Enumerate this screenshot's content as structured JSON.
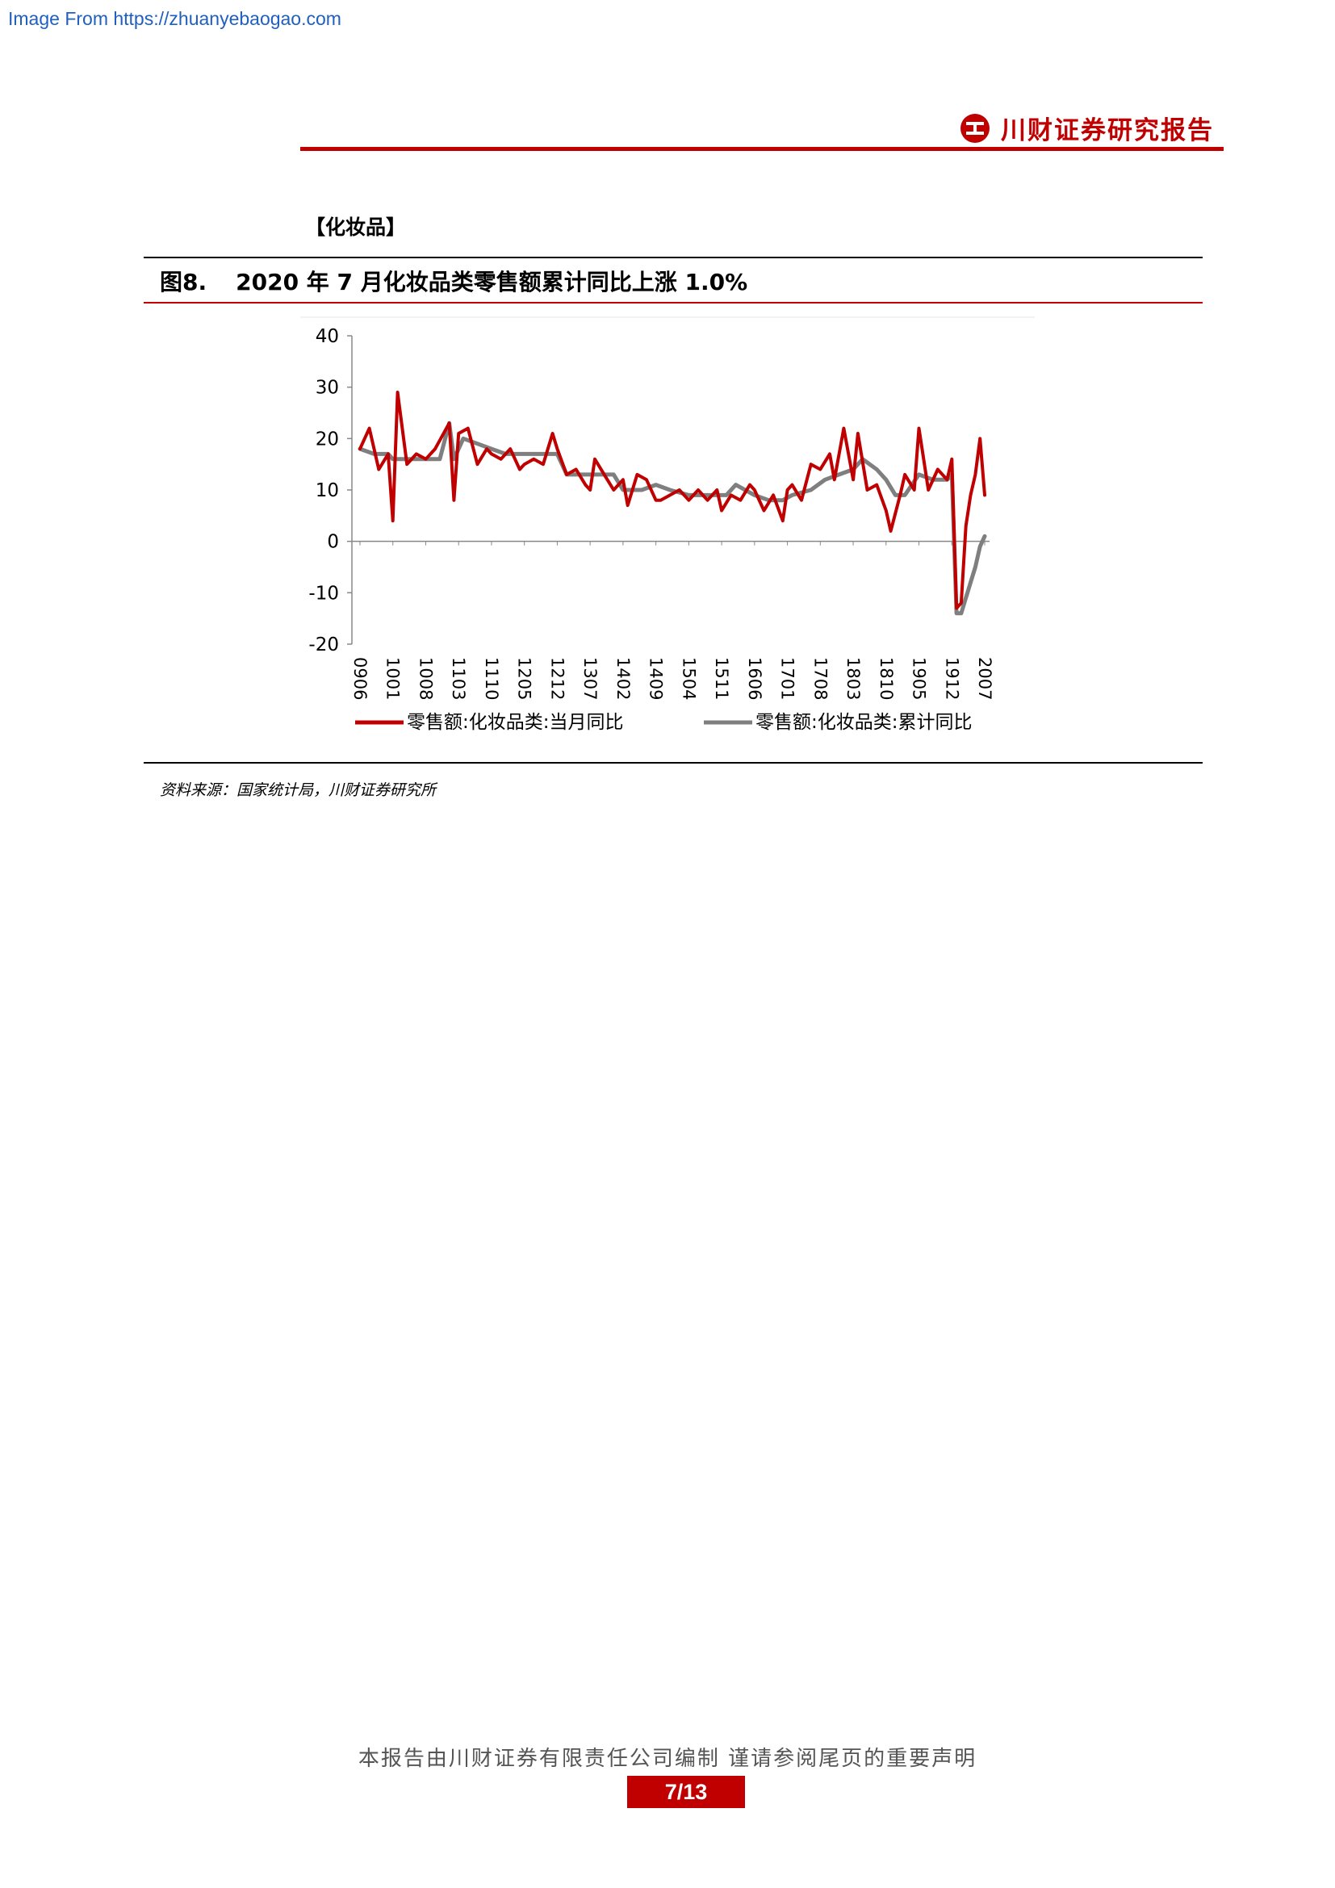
{
  "watermark": "Image From https://zhuanyebaogao.com",
  "header": {
    "brand": "川财证券研究报告"
  },
  "section": {
    "heading": "【化妆品】"
  },
  "figure": {
    "label": "图8.",
    "title": "2020 年 7 月化妆品类零售额累计同比上涨 1.0%",
    "source": "资料来源：国家统计局，川财证券研究所"
  },
  "chart_data": {
    "type": "line",
    "title": "",
    "xlabel": "",
    "ylabel": "",
    "ylim": [
      -20,
      40
    ],
    "yticks": [
      -20,
      -10,
      0,
      10,
      20,
      30,
      40
    ],
    "xtick_labels": [
      "0906",
      "1001",
      "1008",
      "1103",
      "1110",
      "1205",
      "1212",
      "1307",
      "1402",
      "1409",
      "1504",
      "1511",
      "1606",
      "1701",
      "1708",
      "1803",
      "1810",
      "1905",
      "1912",
      "2007"
    ],
    "legend_position": "bottom",
    "grid": false,
    "series": [
      {
        "name": "零售额:化妆品类:当月同比",
        "color": "#c00000",
        "points": [
          [
            "0906",
            18
          ],
          [
            "0908",
            22
          ],
          [
            "0910",
            14
          ],
          [
            "0912",
            17
          ],
          [
            "1001",
            4
          ],
          [
            "1002",
            29
          ],
          [
            "1004",
            15
          ],
          [
            "1006",
            17
          ],
          [
            "1008",
            16
          ],
          [
            "1010",
            18
          ],
          [
            "1101",
            23
          ],
          [
            "1102",
            8
          ],
          [
            "1103",
            21
          ],
          [
            "1105",
            22
          ],
          [
            "1107",
            15
          ],
          [
            "1109",
            18
          ],
          [
            "1110",
            17
          ],
          [
            "1112",
            16
          ],
          [
            "1202",
            18
          ],
          [
            "1204",
            14
          ],
          [
            "1205",
            15
          ],
          [
            "1207",
            16
          ],
          [
            "1209",
            15
          ],
          [
            "1211",
            21
          ],
          [
            "1212",
            18
          ],
          [
            "1302",
            13
          ],
          [
            "1304",
            14
          ],
          [
            "1306",
            11
          ],
          [
            "1307",
            10
          ],
          [
            "1308",
            16
          ],
          [
            "1310",
            13
          ],
          [
            "1312",
            10
          ],
          [
            "1402",
            12
          ],
          [
            "1403",
            7
          ],
          [
            "1405",
            13
          ],
          [
            "1407",
            12
          ],
          [
            "1409",
            8
          ],
          [
            "1410",
            8
          ],
          [
            "1412",
            9
          ],
          [
            "1502",
            10
          ],
          [
            "1504",
            8
          ],
          [
            "1506",
            10
          ],
          [
            "1508",
            8
          ],
          [
            "1510",
            10
          ],
          [
            "1511",
            6
          ],
          [
            "1601",
            9
          ],
          [
            "1603",
            8
          ],
          [
            "1605",
            11
          ],
          [
            "1606",
            10
          ],
          [
            "1608",
            6
          ],
          [
            "1610",
            9
          ],
          [
            "1612",
            4
          ],
          [
            "1701",
            10
          ],
          [
            "1702",
            11
          ],
          [
            "1704",
            8
          ],
          [
            "1706",
            15
          ],
          [
            "1708",
            14
          ],
          [
            "1710",
            17
          ],
          [
            "1711",
            12
          ],
          [
            "1801",
            22
          ],
          [
            "1803",
            12
          ],
          [
            "1804",
            21
          ],
          [
            "1806",
            10
          ],
          [
            "1808",
            11
          ],
          [
            "1810",
            6
          ],
          [
            "1811",
            2
          ],
          [
            "1901",
            9
          ],
          [
            "1902",
            13
          ],
          [
            "1904",
            10
          ],
          [
            "1905",
            22
          ],
          [
            "1907",
            10
          ],
          [
            "1909",
            14
          ],
          [
            "1911",
            12
          ],
          [
            "1912",
            16
          ],
          [
            "2001",
            -13
          ],
          [
            "2002",
            -12
          ],
          [
            "2003",
            3
          ],
          [
            "2004",
            9
          ],
          [
            "2005",
            13
          ],
          [
            "2006",
            20
          ],
          [
            "2007",
            9
          ]
        ]
      },
      {
        "name": "零售额:化妆品类:累计同比",
        "color": "#7f7f7f",
        "points": [
          [
            "0906",
            18
          ],
          [
            "0909",
            17
          ],
          [
            "0912",
            17
          ],
          [
            "1001",
            16
          ],
          [
            "1002",
            16
          ],
          [
            "1005",
            16
          ],
          [
            "1008",
            16
          ],
          [
            "1011",
            16
          ],
          [
            "1101",
            23
          ],
          [
            "1102",
            16
          ],
          [
            "1104",
            20
          ],
          [
            "1107",
            19
          ],
          [
            "1110",
            18
          ],
          [
            "1201",
            17
          ],
          [
            "1205",
            17
          ],
          [
            "1208",
            17
          ],
          [
            "1211",
            17
          ],
          [
            "1212",
            17
          ],
          [
            "1302",
            13
          ],
          [
            "1306",
            13
          ],
          [
            "1309",
            13
          ],
          [
            "1312",
            13
          ],
          [
            "1402",
            10
          ],
          [
            "1406",
            10
          ],
          [
            "1409",
            11
          ],
          [
            "1412",
            10
          ],
          [
            "1504",
            9
          ],
          [
            "1508",
            9
          ],
          [
            "1511",
            9
          ],
          [
            "1512",
            9
          ],
          [
            "1602",
            11
          ],
          [
            "1606",
            9
          ],
          [
            "1609",
            8
          ],
          [
            "1612",
            8
          ],
          [
            "1702",
            9
          ],
          [
            "1706",
            10
          ],
          [
            "1709",
            12
          ],
          [
            "1712",
            13
          ],
          [
            "1803",
            14
          ],
          [
            "1805",
            16
          ],
          [
            "1808",
            14
          ],
          [
            "1810",
            12
          ],
          [
            "1812",
            9
          ],
          [
            "1902",
            9
          ],
          [
            "1905",
            13
          ],
          [
            "1908",
            12
          ],
          [
            "1911",
            12
          ],
          [
            "1912",
            13
          ],
          [
            "2001",
            -14
          ],
          [
            "2002",
            -14
          ],
          [
            "2003",
            -11
          ],
          [
            "2004",
            -8
          ],
          [
            "2005",
            -5
          ],
          [
            "2006",
            -1
          ],
          [
            "2007",
            1
          ]
        ]
      }
    ]
  },
  "footer": {
    "statement": "本报告由川财证券有限责任公司编制 谨请参阅尾页的重要声明",
    "page": "7/13"
  }
}
